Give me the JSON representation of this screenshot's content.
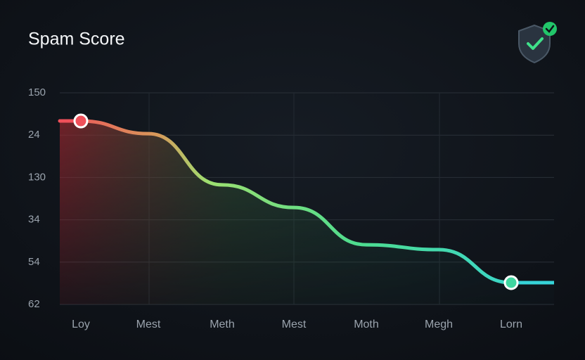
{
  "chart_data": {
    "type": "line",
    "title": "Spam Score",
    "categories": [
      "Loy",
      "Mest",
      "Meth",
      "Mest",
      "Moth",
      "Megh",
      "Lorn"
    ],
    "series": [
      {
        "values": [
          86.7,
          80.7,
          56.5,
          45.8,
          28.2,
          25.9,
          10.3
        ]
      }
    ],
    "ylim": [
      0,
      100
    ],
    "yticks": [
      100,
      80,
      60,
      40,
      20,
      0
    ],
    "y_axis_labels": [
      "150",
      "24",
      "130",
      "34",
      "54",
      "62"
    ],
    "grid": true
  }
}
